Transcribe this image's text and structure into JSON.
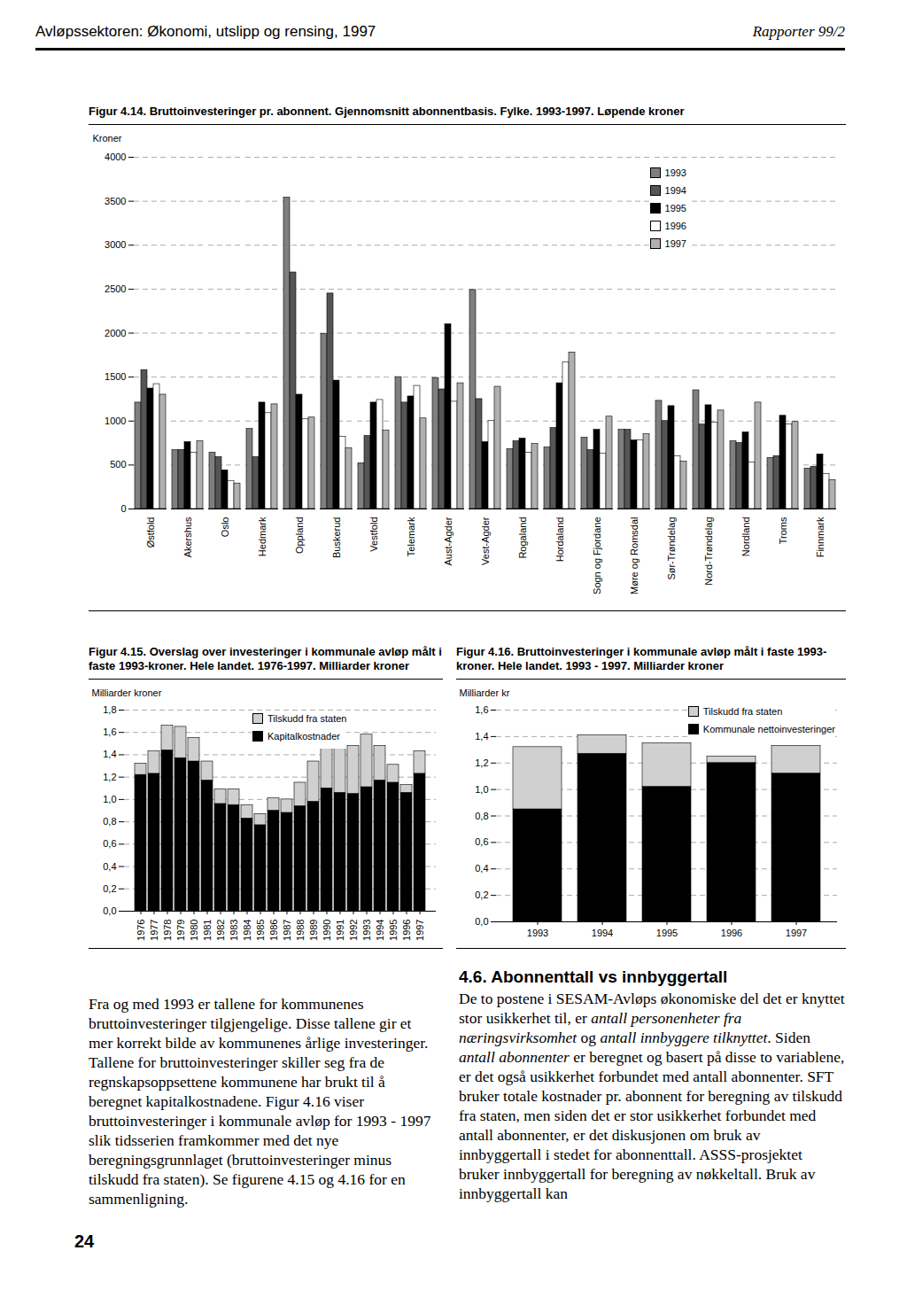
{
  "header": {
    "title": "Avløpssektoren: Økonomi, utslipp og rensing, 1997",
    "series": "Rapporter 99/2"
  },
  "chart_data": [
    {
      "type": "bar",
      "title": "Figur 4.14. Bruttoinvesteringer pr. abonnent. Gjennomsnitt abonnentbasis. Fylke. 1993-1997. Løpende kroner",
      "ylabel": "Kroner",
      "categories": [
        "Østfold",
        "Akershus",
        "Oslo",
        "Hedmark",
        "Oppland",
        "Buskerud",
        "Vestfold",
        "Telemark",
        "Aust-Agder",
        "Vest-Agder",
        "Rogaland",
        "Hordaland",
        "Sogn og Fjordane",
        "Møre og Romsdal",
        "Sør-Trøndelag",
        "Nord-Trøndelag",
        "Nordland",
        "Troms",
        "Finnmark"
      ],
      "series": [
        {
          "name": "1993",
          "color": "#7f7f7f",
          "values": [
            1210,
            670,
            640,
            910,
            3540,
            1990,
            520,
            1500,
            1490,
            2490,
            680,
            700,
            810,
            900,
            1230,
            1350,
            770,
            580,
            460
          ]
        },
        {
          "name": "1994",
          "color": "#555555",
          "values": [
            1580,
            670,
            590,
            590,
            2690,
            2450,
            830,
            1210,
            1360,
            1250,
            770,
            920,
            670,
            900,
            1000,
            960,
            750,
            600,
            480
          ]
        },
        {
          "name": "1995",
          "color": "#000000",
          "values": [
            1370,
            760,
            440,
            1210,
            1300,
            1460,
            1210,
            1280,
            2100,
            760,
            800,
            1430,
            900,
            780,
            1170,
            1180,
            870,
            1060,
            620
          ]
        },
        {
          "name": "1996",
          "color": "#ffffff",
          "values": [
            1420,
            640,
            320,
            1090,
            1020,
            820,
            1240,
            1400,
            1220,
            1000,
            640,
            1670,
            630,
            780,
            600,
            980,
            530,
            960,
            400
          ]
        },
        {
          "name": "1997",
          "color": "#b0b0b0",
          "values": [
            1300,
            770,
            290,
            1190,
            1040,
            690,
            890,
            1030,
            1430,
            1390,
            740,
            1780,
            1050,
            850,
            540,
            1120,
            1210,
            990,
            330
          ]
        }
      ],
      "ylim": [
        0,
        4000
      ],
      "yticks": [
        0,
        500,
        1000,
        1500,
        2000,
        2500,
        3000,
        3500,
        4000
      ],
      "grid": true,
      "legend": "top-right",
      "stacked": false
    },
    {
      "type": "bar",
      "title": "Figur 4.15. Overslag over investeringer i kommunale avløp målt i faste 1993-kroner. Hele landet. 1976-1997. Milliarder kroner",
      "ylabel": "Milliarder kroner",
      "categories": [
        "1976",
        "1977",
        "1978",
        "1979",
        "1980",
        "1981",
        "1982",
        "1983",
        "1984",
        "1985",
        "1986",
        "1987",
        "1988",
        "1989",
        "1990",
        "1991",
        "1992",
        "1993",
        "1994",
        "1995",
        "1996",
        "1997"
      ],
      "series": [
        {
          "name": "Tilskudd fra staten",
          "color": "#d0d0d0",
          "values": [
            0.1,
            0.2,
            0.22,
            0.28,
            0.21,
            0.17,
            0.13,
            0.14,
            0.12,
            0.1,
            0.11,
            0.12,
            0.21,
            0.36,
            0.38,
            0.43,
            0.43,
            0.47,
            0.31,
            0.16,
            0.07,
            0.2
          ]
        },
        {
          "name": "Kapitalkostnader",
          "color": "#000000",
          "values": [
            1.22,
            1.23,
            1.44,
            1.37,
            1.34,
            1.17,
            0.96,
            0.95,
            0.83,
            0.77,
            0.9,
            0.88,
            0.94,
            0.98,
            1.1,
            1.06,
            1.05,
            1.11,
            1.17,
            1.15,
            1.06,
            1.23
          ]
        }
      ],
      "ylim": [
        0,
        1.8
      ],
      "yticks": [
        {
          "value": 0,
          "label": "0,0"
        },
        {
          "value": 0.2,
          "label": "0,2"
        },
        {
          "value": 0.4,
          "label": "0,4"
        },
        {
          "value": 0.6,
          "label": "0,6"
        },
        {
          "value": 0.8,
          "label": "0,8"
        },
        {
          "value": 1.0,
          "label": "1,0"
        },
        {
          "value": 1.2,
          "label": "1,2"
        },
        {
          "value": 1.4,
          "label": "1,4"
        },
        {
          "value": 1.6,
          "label": "1,6"
        },
        {
          "value": 1.8,
          "label": "1,8"
        }
      ],
      "grid": true,
      "legend": "top",
      "stacked": true
    },
    {
      "type": "bar",
      "title": "Figur 4.16. Bruttoinvesteringer i kommunale avløp målt i faste 1993-kroner. Hele landet. 1993 - 1997. Milliarder kroner",
      "ylabel": "Milliarder kr",
      "categories": [
        "1993",
        "1994",
        "1995",
        "1996",
        "1997"
      ],
      "series": [
        {
          "name": "Tilskudd fra staten",
          "color": "#d0d0d0",
          "values": [
            0.47,
            0.14,
            0.33,
            0.05,
            0.21
          ]
        },
        {
          "name": "Kommunale nettoinvesteringer",
          "color": "#000000",
          "values": [
            0.85,
            1.27,
            1.02,
            1.2,
            1.12
          ]
        }
      ],
      "ylim": [
        0,
        1.6
      ],
      "yticks": [
        {
          "value": 0,
          "label": "0,0"
        },
        {
          "value": 0.2,
          "label": "0,2"
        },
        {
          "value": 0.4,
          "label": "0,4"
        },
        {
          "value": 0.6,
          "label": "0,6"
        },
        {
          "value": 0.8,
          "label": "0,8"
        },
        {
          "value": 1.0,
          "label": "1,0"
        },
        {
          "value": 1.2,
          "label": "1,2"
        },
        {
          "value": 1.4,
          "label": "1,4"
        },
        {
          "value": 1.6,
          "label": "1,6"
        }
      ],
      "grid": true,
      "legend": "top-right",
      "stacked": true
    }
  ],
  "text": {
    "left_column": "Fra og med 1993 er tallene for kommunenes bruttoinvesteringer tilgjengelige. Disse tallene gir et mer korrekt bilde av kommunenes årlige investeringer. Tallene for bruttoinvesteringer skiller seg fra de regnskapsoppsettene kommunene har brukt til å beregnet kapitalkostnadene. Figur 4.16 viser bruttoinvesteringer i kommunale avløp for 1993 - 1997 slik tidsserien framkommer med det nye beregningsgrunnlaget (bruttoinvesteringer minus tilskudd fra staten). Se figurene 4.15 og 4.16 for en sammenligning.",
    "right_column": {
      "heading": "4.6. Abonnenttall vs innbyggertall",
      "paragraph": [
        {
          "text": "De to postene i SESAM-Avløps økonomiske del det er knyttet stor usikkerhet til, er ",
          "italic": false
        },
        {
          "text": "antall personenheter fra næringsvirksomhet",
          "italic": true
        },
        {
          "text": " og ",
          "italic": false
        },
        {
          "text": "antall innbyggere tilknyttet",
          "italic": true
        },
        {
          "text": ". Siden ",
          "italic": false
        },
        {
          "text": "antall abonnenter",
          "italic": true
        },
        {
          "text": " er beregnet og basert på disse to variablene, er det også usikkerhet forbundet med antall abonnenter. SFT bruker totale kostnader pr. abonnent for beregning av tilskudd fra staten, men siden det er stor usikkerhet forbundet med antall abonnenter, er det diskusjonen om bruk av innbyggertall i stedet for abonnenttall. ASSS-prosjektet bruker innbyggertall for beregning av nøkkeltall. Bruk av innbyggertall kan",
          "italic": false
        }
      ]
    }
  },
  "page_number": "24"
}
